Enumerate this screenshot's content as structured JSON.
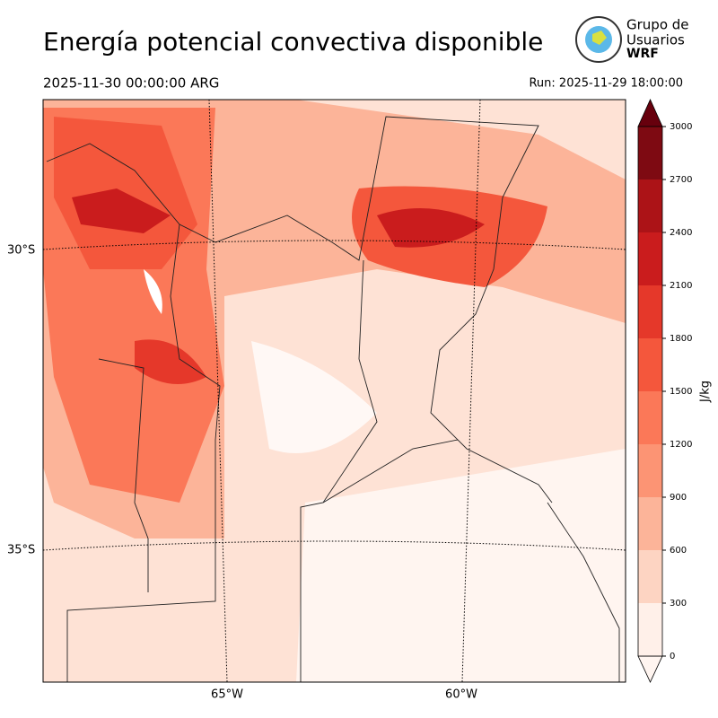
{
  "title": "Energía potencial convectiva disponible",
  "valid_time": "2025-11-30 00:00:00 ARG",
  "run_time": "Run: 2025-11-29 18:00:00",
  "logo": {
    "line1": "Grupo de",
    "line2": "Usuarios",
    "line3": "WRF"
  },
  "map": {
    "lat_labels": [
      "30°S",
      "35°S"
    ],
    "lon_labels": [
      "65°W",
      "60°W"
    ]
  },
  "colorbar": {
    "label": "J/kg",
    "levels": [
      0,
      300,
      600,
      900,
      1200,
      1500,
      1800,
      2100,
      2400,
      2700,
      3000
    ],
    "colors": [
      "#fff0e9",
      "#fdd4c2",
      "#fcb499",
      "#fc9474",
      "#fb7858",
      "#f4573c",
      "#e5382a",
      "#ca1c1d",
      "#ac1317",
      "#7e0a12"
    ],
    "extend_low": "#fff5f0",
    "extend_high": "#67000d"
  }
}
